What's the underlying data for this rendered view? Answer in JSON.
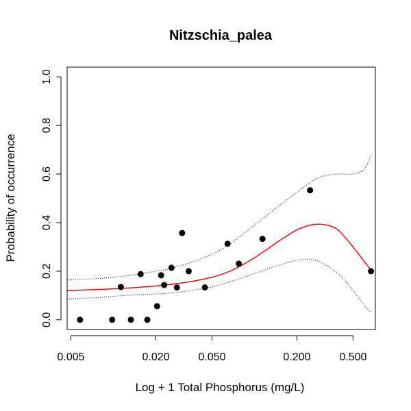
{
  "chart_data": {
    "type": "scatter",
    "title": "Nitzschia_palea",
    "xlabel": "Log + 1 Total Phosphorus (mg/L)",
    "ylabel": "Probability of occurrence",
    "x_scale": "log",
    "xlim": [
      0.0047,
      0.72
    ],
    "ylim": [
      -0.04,
      1.04
    ],
    "x_ticks": [
      {
        "value": 0.005,
        "label": "0.005"
      },
      {
        "value": 0.02,
        "label": "0.020"
      },
      {
        "value": 0.05,
        "label": "0.050"
      },
      {
        "value": 0.2,
        "label": "0.200"
      },
      {
        "value": 0.5,
        "label": "0.500"
      }
    ],
    "y_ticks": [
      {
        "value": 0.0,
        "label": "0.0"
      },
      {
        "value": 0.2,
        "label": "0.2"
      },
      {
        "value": 0.4,
        "label": "0.4"
      },
      {
        "value": 0.6,
        "label": "0.6"
      },
      {
        "value": 0.8,
        "label": "0.8"
      },
      {
        "value": 1.0,
        "label": "1.0"
      }
    ],
    "points": [
      {
        "x": 0.0058,
        "y": 0.0
      },
      {
        "x": 0.0098,
        "y": 0.0
      },
      {
        "x": 0.0113,
        "y": 0.135
      },
      {
        "x": 0.0133,
        "y": 0.0
      },
      {
        "x": 0.0156,
        "y": 0.188
      },
      {
        "x": 0.0174,
        "y": 0.0
      },
      {
        "x": 0.0204,
        "y": 0.056
      },
      {
        "x": 0.0218,
        "y": 0.183
      },
      {
        "x": 0.0229,
        "y": 0.143
      },
      {
        "x": 0.0258,
        "y": 0.214
      },
      {
        "x": 0.0282,
        "y": 0.133
      },
      {
        "x": 0.0307,
        "y": 0.357
      },
      {
        "x": 0.0342,
        "y": 0.2
      },
      {
        "x": 0.0445,
        "y": 0.133
      },
      {
        "x": 0.0645,
        "y": 0.313
      },
      {
        "x": 0.0775,
        "y": 0.231
      },
      {
        "x": 0.114,
        "y": 0.333
      },
      {
        "x": 0.248,
        "y": 0.533
      },
      {
        "x": 0.67,
        "y": 0.2
      }
    ],
    "series": [
      {
        "name": "fitted",
        "color": "#ff0000",
        "style": "solid",
        "x": [
          0.0047,
          0.008,
          0.012,
          0.018,
          0.025,
          0.035,
          0.05,
          0.07,
          0.1,
          0.15,
          0.2,
          0.25,
          0.3,
          0.35,
          0.4,
          0.5,
          0.6,
          0.67
        ],
        "y": [
          0.12,
          0.125,
          0.13,
          0.137,
          0.145,
          0.157,
          0.175,
          0.205,
          0.255,
          0.325,
          0.37,
          0.39,
          0.393,
          0.385,
          0.365,
          0.3,
          0.24,
          0.205
        ]
      },
      {
        "name": "upper CI",
        "color": "#000000",
        "style": "dotted",
        "x": [
          0.0047,
          0.008,
          0.012,
          0.018,
          0.025,
          0.035,
          0.05,
          0.07,
          0.1,
          0.15,
          0.2,
          0.25,
          0.3,
          0.4,
          0.5,
          0.6,
          0.67
        ],
        "y": [
          0.165,
          0.17,
          0.18,
          0.195,
          0.21,
          0.235,
          0.27,
          0.32,
          0.39,
          0.47,
          0.525,
          0.565,
          0.59,
          0.6,
          0.6,
          0.62,
          0.68
        ]
      },
      {
        "name": "lower CI",
        "color": "#000000",
        "style": "dotted",
        "x": [
          0.0047,
          0.008,
          0.012,
          0.018,
          0.025,
          0.035,
          0.05,
          0.07,
          0.1,
          0.15,
          0.2,
          0.25,
          0.3,
          0.4,
          0.5,
          0.6,
          0.67
        ],
        "y": [
          0.085,
          0.092,
          0.1,
          0.105,
          0.11,
          0.12,
          0.135,
          0.16,
          0.19,
          0.225,
          0.245,
          0.248,
          0.235,
          0.185,
          0.12,
          0.06,
          0.03
        ]
      }
    ]
  }
}
